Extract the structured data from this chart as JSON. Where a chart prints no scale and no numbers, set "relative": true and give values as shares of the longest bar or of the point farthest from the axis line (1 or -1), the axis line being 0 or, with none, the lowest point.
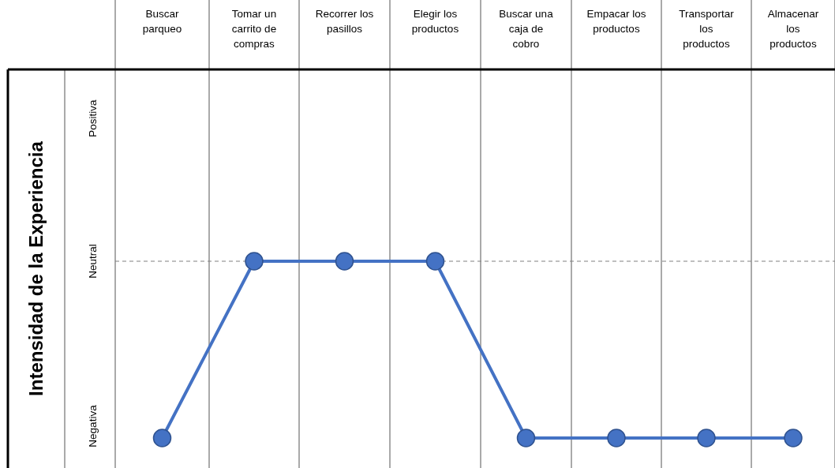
{
  "chart_data": {
    "type": "line",
    "ylabel": "Intensidad de la Experiencia",
    "relative": true,
    "categories": [
      "Buscar parqueo",
      "Tomar un carrito de compras",
      "Recorrer los pasillos",
      "Elegir los productos",
      "Buscar una caja de cobro",
      "Empacar los productos",
      "Transportar los productos",
      "Almacenar los productos"
    ],
    "series": [
      {
        "color": "#4472c4",
        "values": [
          -1,
          0,
          0,
          0,
          -1,
          -1,
          -1,
          -1
        ]
      }
    ],
    "annotations": [
      "Positiva",
      "Neutral",
      "Negativa"
    ],
    "ref_lines": [
      {
        "axis": "y",
        "value": 0,
        "line_style": "dashed",
        "color": "#808080"
      }
    ],
    "grid": "x",
    "marker": "circle",
    "line_style": "solid"
  }
}
